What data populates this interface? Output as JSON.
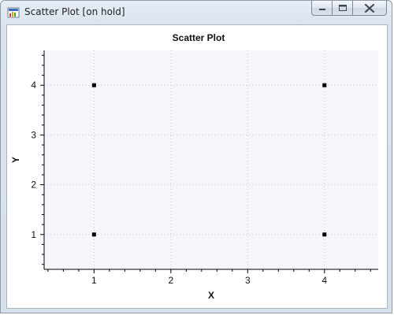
{
  "window": {
    "title": "Scatter Plot [on hold]"
  },
  "icons": {
    "app": "chart-app-icon",
    "minimize": "minimize-icon",
    "maximize": "maximize-icon",
    "close": "close-icon"
  },
  "chart_data": {
    "type": "scatter",
    "title": "Scatter Plot",
    "xlabel": "X",
    "ylabel": "Y",
    "xlim": [
      0.35,
      4.7
    ],
    "ylim": [
      0.3,
      4.7
    ],
    "x_ticks": [
      1,
      2,
      3,
      4
    ],
    "y_ticks": [
      1,
      2,
      3,
      4
    ],
    "grid": true,
    "plot_background": "#f5f6fc",
    "marker_color": "#000000",
    "series": [
      {
        "points": [
          {
            "x": 1,
            "y": 4
          },
          {
            "x": 4,
            "y": 4
          },
          {
            "x": 1,
            "y": 1
          },
          {
            "x": 4,
            "y": 1
          }
        ]
      }
    ]
  }
}
